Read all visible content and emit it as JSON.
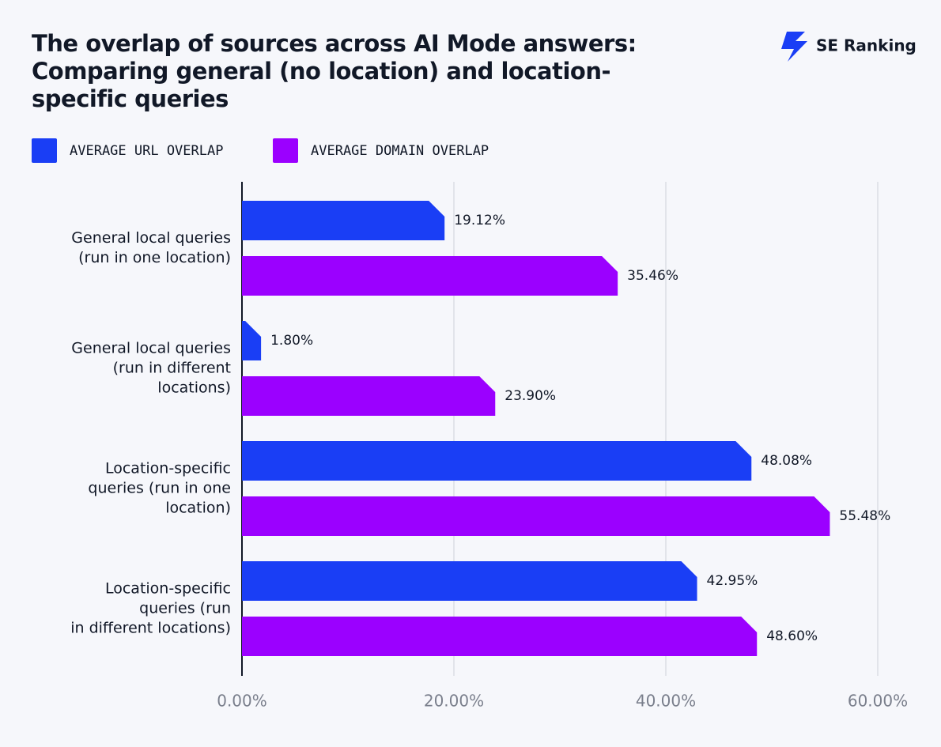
{
  "chart_data": {
    "type": "hbar",
    "title": "The overlap of sources across AI Mode answers:\nComparing general (no location) and location-\nspecific queries",
    "brand": "SE Ranking",
    "categories": [
      "General local queries\n(run in one location)",
      "General local queries\n(run in different\nlocations)",
      "Location-specific\nqueries (run in one\nlocation)",
      "Location-specific\nqueries (run\nin different locations)"
    ],
    "series": [
      {
        "name": "AVERAGE URL OVERLAP",
        "color": "#1a3ef5",
        "values": [
          19.12,
          1.8,
          48.08,
          42.95
        ],
        "value_labels": [
          "19.12%",
          "1.80%",
          "48.08%",
          "42.95%"
        ]
      },
      {
        "name": "AVERAGE DOMAIN OVERLAP",
        "color": "#9b00ff",
        "values": [
          35.46,
          23.9,
          55.48,
          48.6
        ],
        "value_labels": [
          "35.46%",
          "23.90%",
          "55.48%",
          "48.60%"
        ]
      }
    ],
    "xlim": [
      0,
      60
    ],
    "xticks": [
      {
        "value": 0,
        "label": "0.00%"
      },
      {
        "value": 20,
        "label": "20.00%"
      },
      {
        "value": 40,
        "label": "40.00%"
      },
      {
        "value": 60,
        "label": "60.00%"
      }
    ],
    "grid": true
  }
}
